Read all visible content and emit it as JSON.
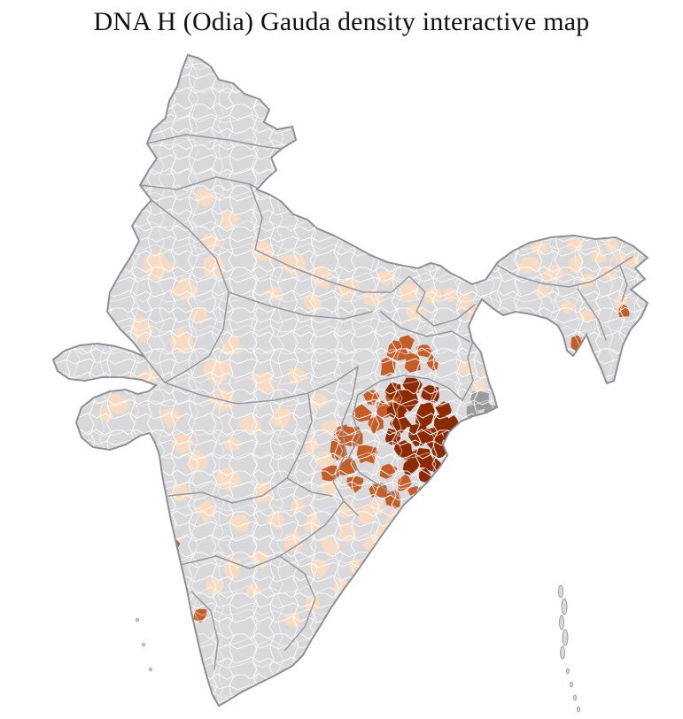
{
  "title": "DNA H (Odia) Gauda density interactive map",
  "map": {
    "description": "India district-level choropleth",
    "background_color": "#ffffff",
    "base_color": "#d9d9dc",
    "border_color": "#8e8e93",
    "state_line_color": "#97979d",
    "district_line_color": "#ffffff",
    "density_scale": {
      "none": "#d9d9dc",
      "low": "#f6dcc5",
      "medium": "#c45e28",
      "high": "#8c2a03",
      "urban_gray": "#9a9a9c"
    }
  }
}
